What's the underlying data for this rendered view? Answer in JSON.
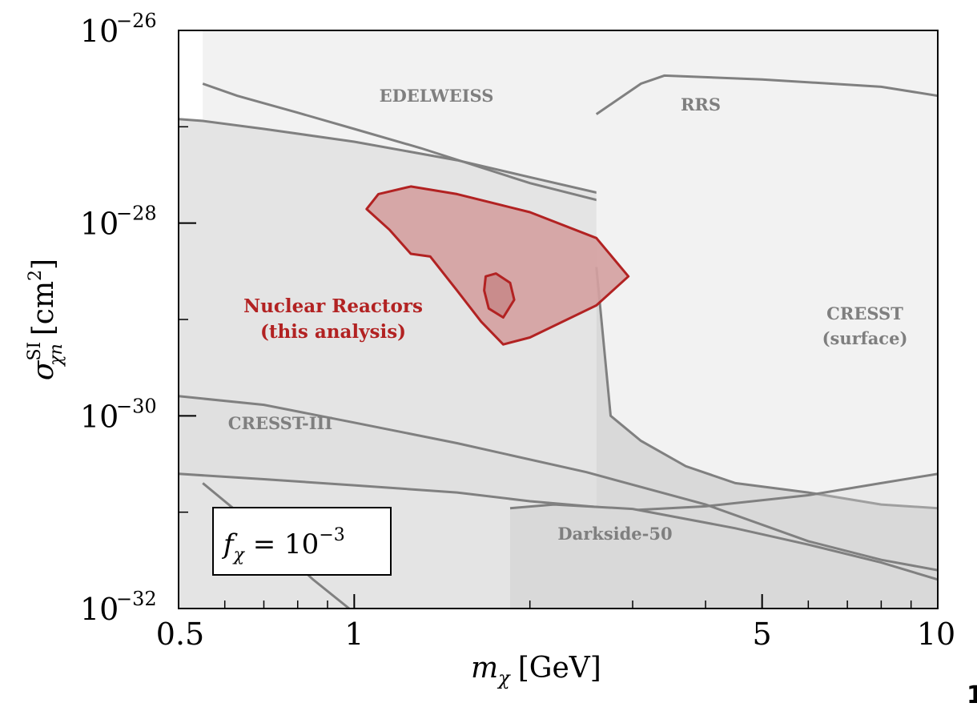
{
  "chart_data": {
    "type": "area",
    "xscale": "log",
    "yscale": "log",
    "xlim": [
      0.5,
      10
    ],
    "ylim": [
      1e-32,
      1e-26
    ],
    "x_ticks": [
      {
        "value": 0.5,
        "label": "0.5"
      },
      {
        "value": 1,
        "label": "1"
      },
      {
        "value": 5,
        "label": "5"
      },
      {
        "value": 10,
        "label": "10"
      }
    ],
    "y_ticks": [
      {
        "value": 1e-26,
        "base": "10",
        "exp": "−26"
      },
      {
        "value": 1e-28,
        "base": "10",
        "exp": "−28"
      },
      {
        "value": 1e-30,
        "base": "10",
        "exp": "−30"
      },
      {
        "value": 1e-32,
        "base": "10",
        "exp": "−32"
      }
    ],
    "xlabel": {
      "main": "m",
      "sub": "χ",
      "unit": "[GeV]"
    },
    "ylabel": {
      "main": "σ",
      "sup": "SI",
      "sub": "χn",
      "unit": "[cm",
      "unit_sup": "2",
      "unit_close": "]"
    },
    "annotation": {
      "lhs": "f",
      "sub": "χ",
      "eq": " = 10",
      "sup": "−3"
    },
    "corner_mark": "1",
    "colors": {
      "boundary": "#808080",
      "region_light": "#f2f2f2",
      "region_mid": "#e4e4e4",
      "region_dark": "#d9d9d9",
      "reactor_fill": "#d4a0a0",
      "reactor_line": "#b22222"
    },
    "regions": [
      {
        "name": "EDELWEISS",
        "label_lines": [
          "EDELWEISS"
        ],
        "upper": [
          [
            0.55,
            2.8e-27
          ],
          [
            0.63,
            2.1e-27
          ],
          [
            0.8,
            1.4e-27
          ],
          [
            1.0,
            9.5e-28
          ],
          [
            1.3,
            6e-28
          ],
          [
            2.0,
            2.6e-28
          ],
          [
            3.0,
            1.4e-28
          ],
          [
            4.5,
            8e-29
          ],
          [
            7.0,
            4e-29
          ],
          [
            10.0,
            2.8e-29
          ]
        ],
        "lower": [
          [
            0.5,
            1.2e-27
          ],
          [
            0.55,
            1.15e-27
          ],
          [
            0.7,
            9.5e-28
          ],
          [
            1.0,
            7e-28
          ],
          [
            1.5,
            4.5e-28
          ],
          [
            2.0,
            3e-28
          ],
          [
            3.0,
            1.7e-28
          ],
          [
            4.5,
            9e-29
          ],
          [
            7.0,
            4.5e-29
          ],
          [
            10.0,
            3e-29
          ]
        ]
      },
      {
        "name": "RRS",
        "label_lines": [
          "RRS"
        ],
        "upper": [
          [
            2.6,
            1.35e-27
          ],
          [
            3.1,
            2.8e-27
          ],
          [
            3.4,
            3.4e-27
          ],
          [
            5.0,
            3.1e-27
          ],
          [
            8.0,
            2.6e-27
          ],
          [
            10.0,
            2.1e-27
          ]
        ],
        "lower": [
          [
            2.6,
            1.35e-27
          ],
          [
            10.0,
            1e-32
          ]
        ]
      },
      {
        "name": "CRESST (surface)",
        "label_lines": [
          "CRESST",
          "(surface)"
        ],
        "upper": [
          [
            2.6,
            3.5e-29
          ],
          [
            2.75,
            1e-30
          ],
          [
            3.1,
            5.5e-31
          ],
          [
            3.7,
            3e-31
          ],
          [
            4.5,
            2e-31
          ],
          [
            6.0,
            1.6e-31
          ],
          [
            8.0,
            1.2e-31
          ],
          [
            10.0,
            1.1e-31
          ]
        ],
        "lower": [
          [
            10.0,
            1.1e-31
          ]
        ]
      },
      {
        "name": "CRESST-III",
        "label_lines": [
          "CRESST-III"
        ],
        "upper": [
          [
            0.5,
            1.6e-30
          ],
          [
            0.7,
            1.3e-30
          ],
          [
            1.0,
            8.5e-31
          ],
          [
            1.5,
            5.2e-31
          ],
          [
            2.5,
            2.6e-31
          ],
          [
            4.0,
            1.2e-31
          ],
          [
            6.0,
            5e-32
          ],
          [
            8.0,
            3.2e-32
          ],
          [
            10.0,
            2.5e-32
          ]
        ],
        "lower": [
          [
            0.5,
            2.5e-31
          ],
          [
            0.7,
            2.2e-31
          ],
          [
            1.0,
            1.9e-31
          ],
          [
            1.5,
            1.6e-31
          ],
          [
            2.0,
            1.3e-31
          ],
          [
            3.0,
            1.05e-31
          ],
          [
            4.0,
            1.15e-31
          ],
          [
            6.0,
            1.5e-31
          ],
          [
            8.0,
            2e-31
          ],
          [
            10.0,
            2.5e-31
          ]
        ]
      },
      {
        "name": "Darkside-50",
        "label_lines": [
          "Darkside-50"
        ],
        "upper": [
          [
            1.85,
            1.1e-31
          ],
          [
            2.2,
            1.2e-31
          ],
          [
            3.0,
            1.08e-31
          ],
          [
            4.5,
            6.8e-32
          ],
          [
            6.0,
            4.6e-32
          ],
          [
            8.0,
            3e-32
          ],
          [
            10.0,
            2e-32
          ]
        ],
        "lower": [
          [
            1.85,
            1e-32
          ],
          [
            10.0,
            1e-32
          ]
        ]
      },
      {
        "name": "Darkside low-mass edge",
        "label_lines": [],
        "upper": [
          [
            0.55,
            2e-31
          ],
          [
            0.7,
            6e-32
          ],
          [
            0.85,
            2e-32
          ],
          [
            0.98,
            1e-32
          ]
        ],
        "lower": []
      }
    ],
    "reactor_region": {
      "name": "Nuclear Reactors (this analysis)",
      "label_lines": [
        "Nuclear Reactors",
        "(this analysis)"
      ],
      "outer_contour": [
        [
          1.05,
          1.4e-28
        ],
        [
          1.1,
          2e-28
        ],
        [
          1.25,
          2.4e-28
        ],
        [
          1.5,
          2e-28
        ],
        [
          2.0,
          1.3e-28
        ],
        [
          2.6,
          7e-29
        ],
        [
          2.95,
          2.8e-29
        ],
        [
          2.6,
          1.4e-29
        ],
        [
          2.0,
          6.5e-30
        ],
        [
          1.8,
          5.5e-30
        ],
        [
          1.65,
          9.5e-30
        ],
        [
          1.5,
          2e-29
        ],
        [
          1.35,
          4.5e-29
        ],
        [
          1.25,
          4.8e-29
        ],
        [
          1.15,
          8.5e-29
        ]
      ],
      "inner_contour": [
        [
          1.68,
          2.8e-29
        ],
        [
          1.75,
          3e-29
        ],
        [
          1.85,
          2.4e-29
        ],
        [
          1.88,
          1.6e-29
        ],
        [
          1.8,
          1.05e-29
        ],
        [
          1.7,
          1.3e-29
        ],
        [
          1.67,
          2e-29
        ]
      ]
    }
  }
}
